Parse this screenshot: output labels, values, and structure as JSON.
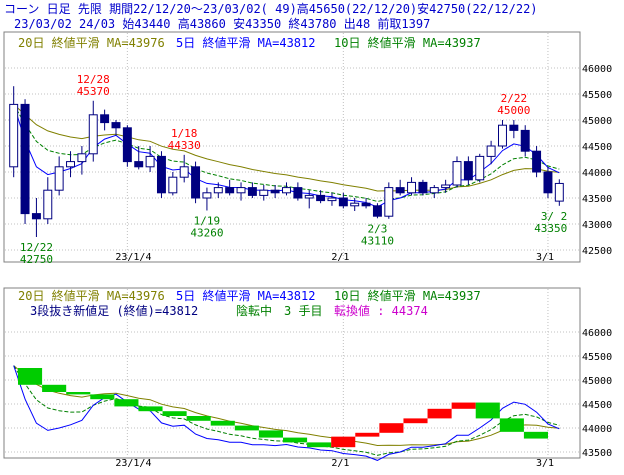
{
  "header": {
    "line1": "コーン 日足 先限 期間22/12/20～23/03/02( 49)高45650(22/12/20)安42750(22/12/22)",
    "line2": "23/03/02 24/03 始43440 高43860 安43350 終43780 出48 前取1397"
  },
  "colors": {
    "ma20": "#808000",
    "ma5": "#0000ff",
    "ma10": "#008000",
    "bear": "#000080",
    "bull": "#ffffff",
    "up_brick": "#ff0000",
    "down_brick": "#00cc00",
    "annotation_high": "#ff0000",
    "annotation_low": "#008000",
    "grid": "#c0c0c0"
  },
  "chart_data": [
    {
      "type": "candlestick",
      "legend": [
        {
          "key": "ma20",
          "label": "20日 終値平滑 MA=43976"
        },
        {
          "key": "ma5",
          "label": "5日 終値平滑 MA=43812"
        },
        {
          "key": "ma10",
          "label": "10日 終値平滑 MA=43937"
        }
      ],
      "ylim": [
        42500,
        46250
      ],
      "yticks": [
        42500,
        43000,
        43500,
        44000,
        44500,
        45000,
        45500,
        46000
      ],
      "xticks": [
        {
          "i": 10,
          "label": "23/1/4"
        },
        {
          "i": 29,
          "label": "2/1"
        },
        {
          "i": 47,
          "label": "3/1"
        }
      ],
      "candles": [
        {
          "o": 44100,
          "h": 45650,
          "l": 43900,
          "c": 45300
        },
        {
          "o": 45300,
          "h": 45400,
          "l": 43000,
          "c": 43200
        },
        {
          "o": 43200,
          "h": 43500,
          "l": 42750,
          "c": 43100
        },
        {
          "o": 43100,
          "h": 43900,
          "l": 43000,
          "c": 43650
        },
        {
          "o": 43650,
          "h": 44300,
          "l": 43550,
          "c": 44100
        },
        {
          "o": 44100,
          "h": 44400,
          "l": 43900,
          "c": 44200
        },
        {
          "o": 44200,
          "h": 44500,
          "l": 43950,
          "c": 44350
        },
        {
          "o": 44350,
          "h": 45370,
          "l": 44200,
          "c": 45100
        },
        {
          "o": 45100,
          "h": 45200,
          "l": 44800,
          "c": 44950
        },
        {
          "o": 44950,
          "h": 45000,
          "l": 44700,
          "c": 44850
        },
        {
          "o": 44850,
          "h": 44900,
          "l": 44100,
          "c": 44200
        },
        {
          "o": 44200,
          "h": 44500,
          "l": 44050,
          "c": 44100
        },
        {
          "o": 44100,
          "h": 44500,
          "l": 44000,
          "c": 44300
        },
        {
          "o": 44300,
          "h": 44400,
          "l": 43500,
          "c": 43600
        },
        {
          "o": 43600,
          "h": 44000,
          "l": 43550,
          "c": 43900
        },
        {
          "o": 43900,
          "h": 44330,
          "l": 43800,
          "c": 44100
        },
        {
          "o": 44100,
          "h": 44200,
          "l": 43400,
          "c": 43500
        },
        {
          "o": 43500,
          "h": 43700,
          "l": 43260,
          "c": 43600
        },
        {
          "o": 43600,
          "h": 43800,
          "l": 43500,
          "c": 43700
        },
        {
          "o": 43700,
          "h": 43850,
          "l": 43550,
          "c": 43600
        },
        {
          "o": 43600,
          "h": 43800,
          "l": 43450,
          "c": 43700
        },
        {
          "o": 43700,
          "h": 43800,
          "l": 43500,
          "c": 43550
        },
        {
          "o": 43550,
          "h": 43750,
          "l": 43450,
          "c": 43650
        },
        {
          "o": 43650,
          "h": 43750,
          "l": 43500,
          "c": 43600
        },
        {
          "o": 43600,
          "h": 43800,
          "l": 43550,
          "c": 43700
        },
        {
          "o": 43700,
          "h": 43800,
          "l": 43450,
          "c": 43500
        },
        {
          "o": 43500,
          "h": 43650,
          "l": 43300,
          "c": 43550
        },
        {
          "o": 43550,
          "h": 43650,
          "l": 43400,
          "c": 43450
        },
        {
          "o": 43450,
          "h": 43600,
          "l": 43350,
          "c": 43500
        },
        {
          "o": 43500,
          "h": 43600,
          "l": 43300,
          "c": 43350
        },
        {
          "o": 43350,
          "h": 43500,
          "l": 43250,
          "c": 43400
        },
        {
          "o": 43400,
          "h": 43500,
          "l": 43300,
          "c": 43350
        },
        {
          "o": 43350,
          "h": 43400,
          "l": 43110,
          "c": 43150
        },
        {
          "o": 43150,
          "h": 43800,
          "l": 43100,
          "c": 43700
        },
        {
          "o": 43700,
          "h": 43850,
          "l": 43550,
          "c": 43600
        },
        {
          "o": 43600,
          "h": 43900,
          "l": 43550,
          "c": 43800
        },
        {
          "o": 43800,
          "h": 43850,
          "l": 43550,
          "c": 43600
        },
        {
          "o": 43600,
          "h": 43750,
          "l": 43500,
          "c": 43700
        },
        {
          "o": 43700,
          "h": 43850,
          "l": 43600,
          "c": 43750
        },
        {
          "o": 43750,
          "h": 44300,
          "l": 43700,
          "c": 44200
        },
        {
          "o": 44200,
          "h": 44300,
          "l": 43750,
          "c": 43850
        },
        {
          "o": 43850,
          "h": 44350,
          "l": 43800,
          "c": 44300
        },
        {
          "o": 44300,
          "h": 44600,
          "l": 44150,
          "c": 44500
        },
        {
          "o": 44500,
          "h": 45000,
          "l": 44450,
          "c": 44900
        },
        {
          "o": 44900,
          "h": 45000,
          "l": 44650,
          "c": 44800
        },
        {
          "o": 44800,
          "h": 44900,
          "l": 44300,
          "c": 44400
        },
        {
          "o": 44400,
          "h": 44500,
          "l": 43900,
          "c": 44000
        },
        {
          "o": 44000,
          "h": 44100,
          "l": 43500,
          "c": 43600
        },
        {
          "o": 43440,
          "h": 43860,
          "l": 43350,
          "c": 43780
        }
      ],
      "annotations": [
        {
          "i": 7,
          "date": "12/28",
          "price": "45370",
          "kind": "high"
        },
        {
          "i": 15,
          "date": "1/18",
          "price": "44330",
          "kind": "high"
        },
        {
          "i": 44,
          "date": "2/22",
          "price": "45000",
          "kind": "high"
        },
        {
          "i": 2,
          "date": "12/22",
          "price": "42750",
          "kind": "low"
        },
        {
          "i": 17,
          "date": "1/19",
          "price": "43260",
          "kind": "low"
        },
        {
          "i": 32,
          "date": "2/3",
          "price": "43110",
          "kind": "low"
        },
        {
          "i": 48,
          "date": "3/ 2",
          "price": "43350",
          "kind": "low"
        }
      ]
    },
    {
      "type": "three-line-break",
      "legend": [
        {
          "key": "ma20",
          "label": "20日 終値平滑 MA=43976"
        },
        {
          "key": "ma5",
          "label": "5日 終値平滑 MA=43812"
        },
        {
          "key": "ma10",
          "label": "10日 終値平滑 MA=43937"
        }
      ],
      "info": {
        "label": "3段抜き新値足 (終値)=43812",
        "status": "陰転中",
        "count": "3 手目",
        "reversal": "転換値 : 44374"
      },
      "ylim": [
        43500,
        46250
      ],
      "yticks": [
        43500,
        44000,
        44500,
        45000,
        45500,
        46000
      ],
      "bricks": [
        {
          "from": 45250,
          "to": 44900,
          "dir": "down"
        },
        {
          "from": 44900,
          "to": 44750,
          "dir": "down"
        },
        {
          "from": 44750,
          "to": 44700,
          "dir": "down"
        },
        {
          "from": 44700,
          "to": 44600,
          "dir": "down"
        },
        {
          "from": 44600,
          "to": 44450,
          "dir": "down"
        },
        {
          "from": 44450,
          "to": 44350,
          "dir": "down"
        },
        {
          "from": 44350,
          "to": 44250,
          "dir": "down"
        },
        {
          "from": 44250,
          "to": 44150,
          "dir": "down"
        },
        {
          "from": 44150,
          "to": 44050,
          "dir": "down"
        },
        {
          "from": 44050,
          "to": 43950,
          "dir": "down"
        },
        {
          "from": 43950,
          "to": 43800,
          "dir": "down"
        },
        {
          "from": 43800,
          "to": 43700,
          "dir": "down"
        },
        {
          "from": 43700,
          "to": 43600,
          "dir": "down"
        },
        {
          "from": 43600,
          "to": 43820,
          "dir": "up"
        },
        {
          "from": 43820,
          "to": 43900,
          "dir": "up"
        },
        {
          "from": 43900,
          "to": 44100,
          "dir": "up"
        },
        {
          "from": 44100,
          "to": 44200,
          "dir": "up"
        },
        {
          "from": 44200,
          "to": 44400,
          "dir": "up"
        },
        {
          "from": 44400,
          "to": 44530,
          "dir": "up"
        },
        {
          "from": 44530,
          "to": 44200,
          "dir": "down"
        },
        {
          "from": 44200,
          "to": 43920,
          "dir": "down"
        },
        {
          "from": 43920,
          "to": 43780,
          "dir": "down"
        }
      ],
      "xticks": [
        {
          "label": "23/1/4"
        },
        {
          "label": "2/1"
        },
        {
          "label": "3/1"
        }
      ]
    }
  ]
}
